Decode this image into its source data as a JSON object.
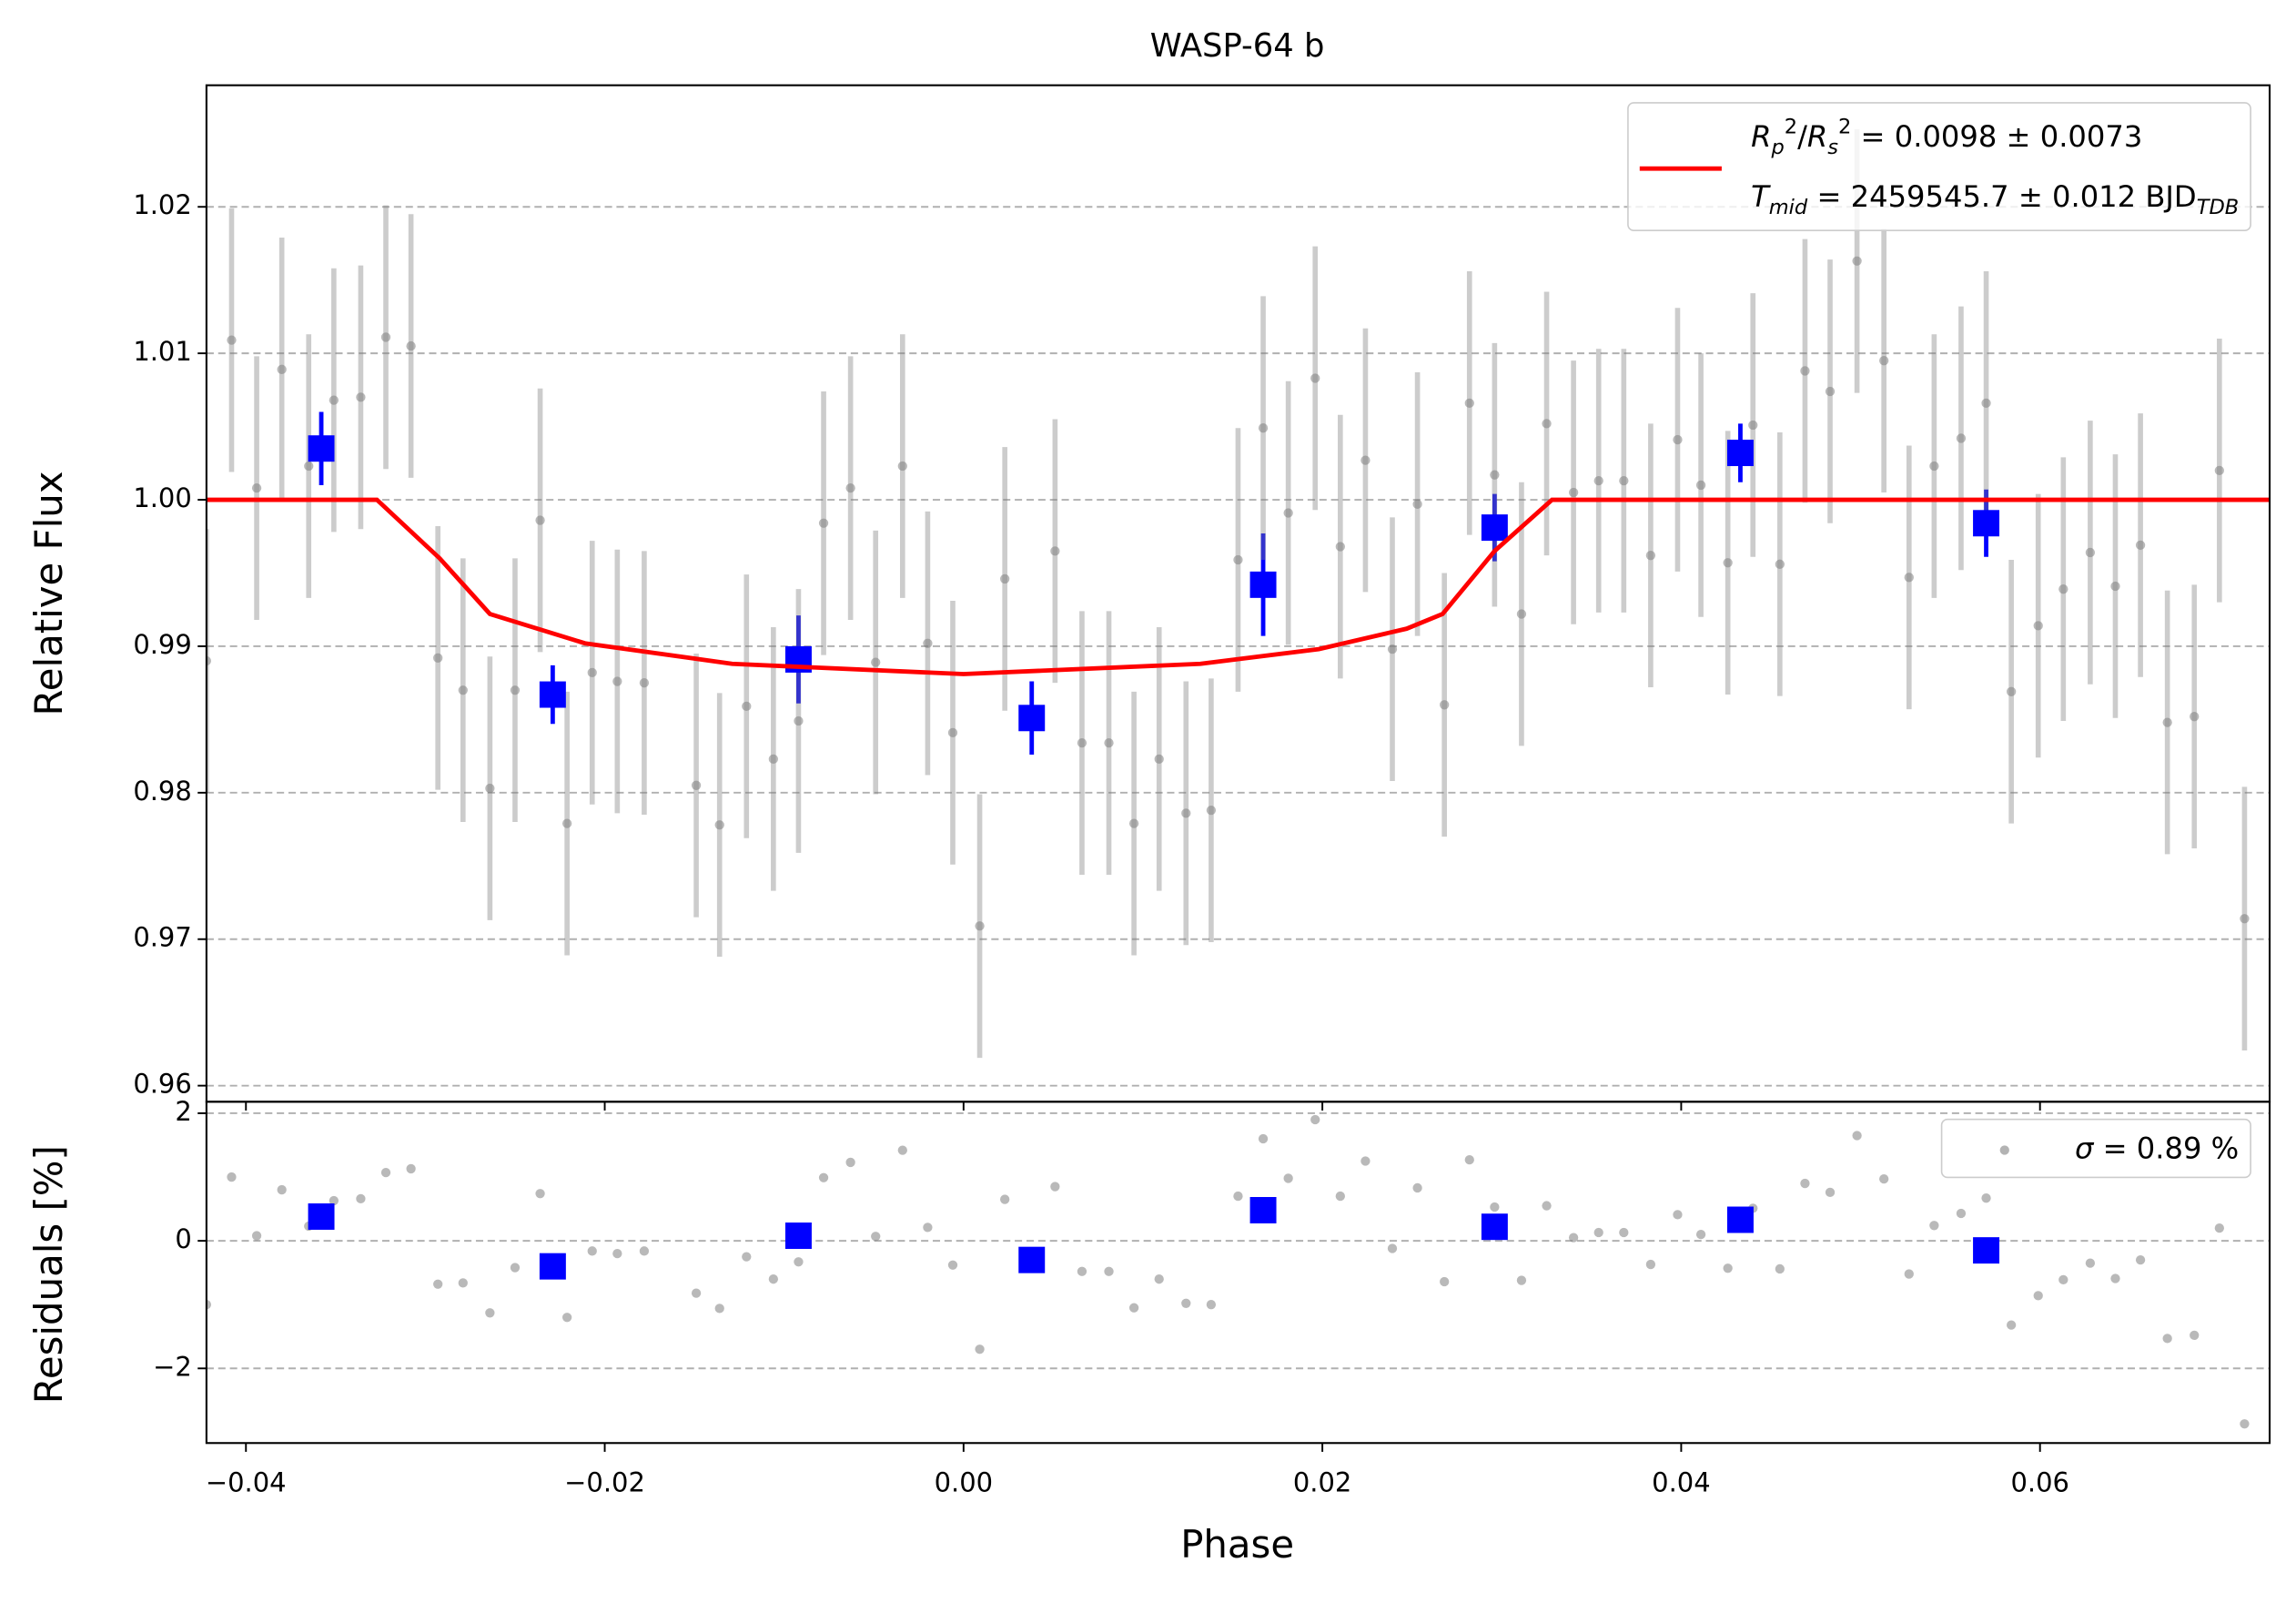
{
  "chart_data": [
    {
      "type": "scatter",
      "title": "WASP-64 b",
      "ylabel": "Relative Flux",
      "xlim": [
        -0.0422,
        0.0728
      ],
      "ylim": [
        0.9589,
        1.0283
      ],
      "xticks": [
        -0.04,
        -0.02,
        0,
        0.02,
        0.04,
        0.06
      ],
      "yticks": [
        0.96,
        0.97,
        0.98,
        0.99,
        {
          "value": 1.0,
          "label": "1.00"
        },
        1.01,
        1.02
      ],
      "grid": true,
      "legend": "upper right",
      "series": [
        {
          "kind": "points",
          "marker": "circle",
          "color": "#808080",
          "x": [
            -0.0422,
            -0.0408,
            -0.0394,
            -0.038,
            -0.0365,
            -0.0351,
            -0.0336,
            -0.0322,
            -0.0308,
            -0.0293,
            -0.0279,
            -0.0264,
            -0.025,
            -0.0236,
            -0.0221,
            -0.0207,
            -0.0193,
            -0.0178,
            -0.0149,
            -0.0136,
            -0.0121,
            -0.0106,
            -0.0092,
            -0.0078,
            -0.0063,
            -0.0049,
            -0.0034,
            -0.002,
            -0.0006,
            0.0009,
            0.0023,
            0.0051,
            0.0066,
            0.0081,
            0.0095,
            0.0109,
            0.0124,
            0.0138,
            0.0153,
            0.0167,
            0.0181,
            0.0196,
            0.021,
            0.0224,
            0.0239,
            0.0253,
            0.0268,
            0.0282,
            0.0296,
            0.0311,
            0.0325,
            0.034,
            0.0354,
            0.0368,
            0.0383,
            0.0398,
            0.0411,
            0.0426,
            0.044,
            0.0455,
            0.0469,
            0.0483,
            0.0498,
            0.0513,
            0.0527,
            0.0541,
            0.0556,
            0.057,
            0.0584,
            0.0599,
            0.0613,
            0.0628,
            0.0642,
            0.0656,
            0.0671,
            0.0686,
            0.07,
            0.0714
          ],
          "values": [
            0.989,
            1.0109,
            1.0008,
            1.0089,
            1.0023,
            1.0068,
            1.007,
            1.0111,
            1.0105,
            0.9892,
            0.987,
            0.9803,
            0.987,
            0.9986,
            0.9779,
            0.9882,
            0.9876,
            0.9875,
            0.9805,
            0.9778,
            0.9859,
            0.9823,
            0.9849,
            0.9984,
            1.0008,
            0.9889,
            1.0023,
            0.9902,
            0.9841,
            0.9709,
            0.9946,
            0.9965,
            0.9834,
            0.9834,
            0.9779,
            0.9823,
            0.9786,
            0.9788,
            0.9959,
            1.0049,
            0.9991,
            1.0083,
            0.9968,
            1.0027,
            0.9898,
            0.9997,
            0.986,
            1.0066,
            1.0017,
            0.9922,
            1.0052,
            1.0005,
            1.0013,
            1.0013,
            0.9962,
            1.0041,
            1.001,
            0.9957,
            1.0051,
            0.9956,
            1.0088,
            1.0074,
            1.0163,
            1.0095,
            0.9947,
            1.0023,
            1.0042,
            1.0066,
            0.9869,
            0.9914,
            0.9939,
            0.9964,
            0.9941,
            0.9969,
            0.9848,
            0.9852,
            1.002,
            0.9714
          ],
          "errors": [
            0.009,
            0.009,
            0.009,
            0.009,
            0.009,
            0.009,
            0.009,
            0.009,
            0.009,
            0.009,
            0.009,
            0.009,
            0.009,
            0.009,
            0.009,
            0.009,
            0.009,
            0.009,
            0.009,
            0.009,
            0.009,
            0.009,
            0.009,
            0.009,
            0.009,
            0.009,
            0.009,
            0.009,
            0.009,
            0.009,
            0.009,
            0.009,
            0.009,
            0.009,
            0.009,
            0.009,
            0.009,
            0.009,
            0.009,
            0.009,
            0.009,
            0.009,
            0.009,
            0.009,
            0.009,
            0.009,
            0.009,
            0.009,
            0.009,
            0.009,
            0.009,
            0.009,
            0.009,
            0.009,
            0.009,
            0.009,
            0.009,
            0.009,
            0.009,
            0.009,
            0.009,
            0.009,
            0.009,
            0.009,
            0.009,
            0.009,
            0.009,
            0.009,
            0.009,
            0.009,
            0.009,
            0.009,
            0.009,
            0.009,
            0.009,
            0.009,
            0.009,
            0.009
          ]
        },
        {
          "kind": "points",
          "marker": "square",
          "color": "#0000ff",
          "x": [
            -0.0358,
            -0.0229,
            -0.0092,
            0.0038,
            0.0167,
            0.0296,
            0.0433,
            0.057
          ],
          "values": [
            1.0035,
            0.9867,
            0.9891,
            0.9851,
            0.9942,
            0.9981,
            1.0032,
            0.9984
          ],
          "errors": [
            0.0025,
            0.002,
            0.003,
            0.0025,
            0.0035,
            0.0023,
            0.002,
            0.0023
          ]
        },
        {
          "kind": "line",
          "color": "#ff0000",
          "x": [
            -0.0422,
            -0.0327,
            -0.0292,
            -0.0264,
            -0.0211,
            -0.0129,
            0,
            0.0132,
            0.0198,
            0.0247,
            0.0267,
            0.0296,
            0.0328,
            0.0728
          ],
          "values": [
            1.0,
            1.0,
            0.996,
            0.9922,
            0.9902,
            0.9888,
            0.9881,
            0.9888,
            0.9898,
            0.9912,
            0.9922,
            0.9965,
            1.0,
            1.0
          ],
          "name": [
            [
              {
                "text": "R",
                "style": "italic"
              },
              {
                "text": "p",
                "style": "sub-italic"
              },
              {
                "text": "2",
                "style": "sup"
              },
              {
                "text": "/",
                "style": "normal"
              },
              {
                "text": "R",
                "style": "italic"
              },
              {
                "text": "s",
                "style": "sub-italic"
              },
              {
                "text": "2",
                "style": "sup"
              },
              {
                "text": " = 0.0098 ± 0.0073",
                "style": "normal"
              }
            ],
            [
              {
                "text": "T",
                "style": "italic"
              },
              {
                "text": "mid",
                "style": "sub-italic"
              },
              {
                "text": " = 2459545.7 ± 0.012 BJD",
                "style": "normal"
              },
              {
                "text": "TDB",
                "style": "sub-italic"
              }
            ]
          ]
        }
      ]
    },
    {
      "type": "scatter",
      "ylabel": "Residuals [%]",
      "xlabel": "Phase",
      "xlim": [
        -0.0422,
        0.0728
      ],
      "ylim": [
        -3.17,
        2.18
      ],
      "xticks": [
        {
          "value": -0.04,
          "label": "−0.04"
        },
        {
          "value": -0.02,
          "label": "−0.02"
        },
        {
          "value": 0,
          "label": "0.00"
        },
        0.02,
        0.04,
        0.06
      ],
      "yticks": [
        {
          "value": -2,
          "label": "−2"
        },
        0,
        2
      ],
      "grid": true,
      "legend": "upper right",
      "series": [
        {
          "kind": "points",
          "marker": "circle",
          "color": "#808080",
          "x": [
            -0.0422,
            -0.0408,
            -0.0394,
            -0.038,
            -0.0365,
            -0.0351,
            -0.0336,
            -0.0322,
            -0.0308,
            -0.0293,
            -0.0279,
            -0.0264,
            -0.025,
            -0.0236,
            -0.0221,
            -0.0207,
            -0.0193,
            -0.0178,
            -0.0149,
            -0.0136,
            -0.0121,
            -0.0106,
            -0.0092,
            -0.0078,
            -0.0063,
            -0.0049,
            -0.0034,
            -0.002,
            -0.0006,
            0.0009,
            0.0023,
            0.0051,
            0.0066,
            0.0081,
            0.0095,
            0.0109,
            0.0124,
            0.0138,
            0.0153,
            0.0167,
            0.0181,
            0.0196,
            0.021,
            0.0224,
            0.0239,
            0.0253,
            0.0268,
            0.0282,
            0.0296,
            0.0311,
            0.0325,
            0.034,
            0.0354,
            0.0368,
            0.0383,
            0.0398,
            0.0411,
            0.0426,
            0.044,
            0.0455,
            0.0469,
            0.0483,
            0.0498,
            0.0513,
            0.0527,
            0.0541,
            0.0556,
            0.057,
            0.0584,
            0.0599,
            0.0613,
            0.0628,
            0.0642,
            0.0656,
            0.0671,
            0.0686,
            0.07,
            0.0714
          ],
          "values": [
            -1.0,
            1.0,
            0.08,
            0.8,
            0.23,
            0.63,
            0.66,
            1.07,
            1.13,
            -0.68,
            -0.66,
            -1.13,
            -0.42,
            0.74,
            -1.2,
            -0.16,
            -0.2,
            -0.16,
            -0.82,
            -1.06,
            -0.25,
            -0.6,
            -0.33,
            0.99,
            1.23,
            0.07,
            1.42,
            0.21,
            -0.38,
            -1.7,
            0.65,
            0.85,
            -0.48,
            -0.48,
            -1.05,
            -0.6,
            -0.98,
            -1.0,
            0.7,
            1.6,
            0.98,
            1.9,
            0.7,
            1.25,
            -0.12,
            0.83,
            -0.64,
            1.27,
            0.53,
            -0.62,
            0.55,
            0.05,
            0.13,
            0.13,
            -0.37,
            0.41,
            0.1,
            -0.43,
            0.51,
            -0.44,
            0.9,
            0.76,
            1.65,
            0.97,
            -0.52,
            0.24,
            0.43,
            0.67,
            -1.32,
            -0.86,
            -0.61,
            -0.35,
            -0.59,
            -0.3,
            -1.53,
            -1.48,
            0.2,
            -2.87
          ],
          "name": [
            [
              {
                "text": "σ",
                "style": "italic"
              },
              {
                "text": " = 0.89 %",
                "style": "normal"
              }
            ]
          ]
        },
        {
          "kind": "points",
          "marker": "square",
          "color": "#0000ff",
          "x": [
            -0.0358,
            -0.0229,
            -0.0092,
            0.0038,
            0.0167,
            0.0296,
            0.0433,
            0.057
          ],
          "values": [
            0.38,
            -0.4,
            0.08,
            -0.3,
            0.48,
            0.22,
            0.33,
            -0.15
          ]
        }
      ]
    }
  ]
}
